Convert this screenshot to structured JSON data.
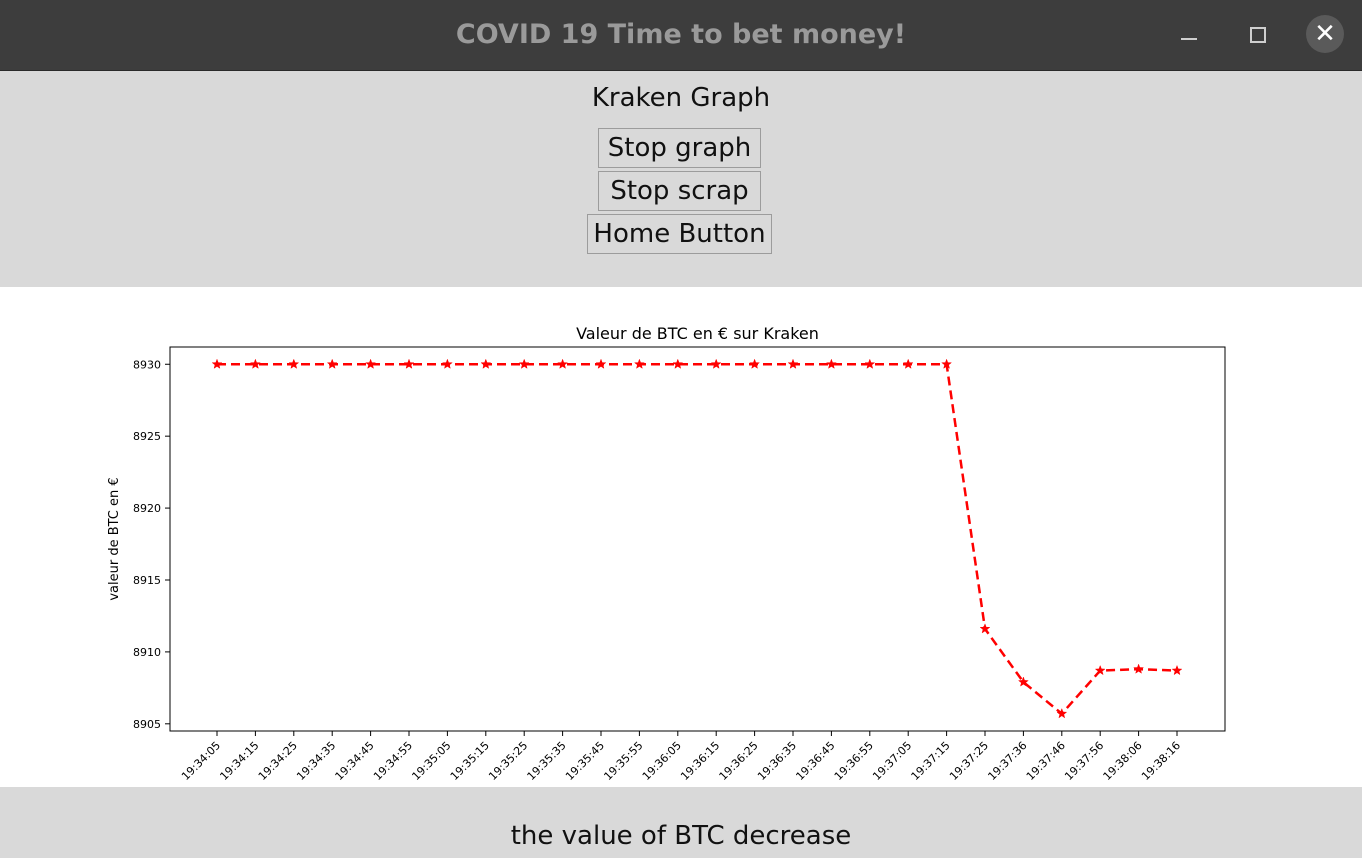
{
  "window": {
    "title": "COVID 19 Time to bet money!",
    "close_glyph": "✕"
  },
  "header": {
    "title": "Kraken Graph"
  },
  "buttons": {
    "stop_graph": "Stop graph",
    "stop_scrap": "Stop scrap",
    "home": "Home Button"
  },
  "status": {
    "message": "the value of BTC decrease"
  },
  "chart_data": {
    "type": "line",
    "title": "Valeur de BTC en € sur Kraken",
    "ylabel": "valeur de BTC en €",
    "xlabel": "",
    "x": [
      "19:34:05",
      "19:34:15",
      "19:34:25",
      "19:34:35",
      "19:34:45",
      "19:34:55",
      "19:35:05",
      "19:35:15",
      "19:35:25",
      "19:35:35",
      "19:35:45",
      "19:35:55",
      "19:36:05",
      "19:36:15",
      "19:36:25",
      "19:36:35",
      "19:36:45",
      "19:36:55",
      "19:37:05",
      "19:37:15",
      "19:37:25",
      "19:37:36",
      "19:37:46",
      "19:37:56",
      "19:38:06",
      "19:38:16"
    ],
    "series": [
      {
        "values": [
          8930,
          8930,
          8930,
          8930,
          8930,
          8930,
          8930,
          8930,
          8930,
          8930,
          8930,
          8930,
          8930,
          8930,
          8930,
          8930,
          8930,
          8930,
          8930,
          8930,
          8911.6,
          8907.9,
          8905.7,
          8908.7,
          8908.8,
          8908.7
        ],
        "color": "#ff0000",
        "line_style": "dashed",
        "marker": "star"
      }
    ],
    "yticks": [
      8905,
      8910,
      8915,
      8920,
      8925,
      8930
    ],
    "ylim": [
      8904.5,
      8931.2
    ],
    "grid": false
  }
}
